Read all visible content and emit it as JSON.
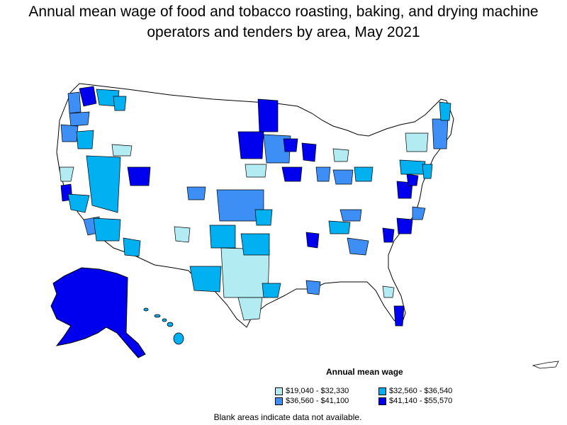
{
  "title": "Annual mean wage of food and tobacco roasting, baking, and drying machine operators and tenders by area, May 2021",
  "legend": {
    "title": "Annual mean wage",
    "items": [
      {
        "label": "$19,040 - $32,330",
        "color": "#b2ebf2"
      },
      {
        "label": "$32,560 - $36,540",
        "color": "#00b0f0"
      },
      {
        "label": "$36,560 - $41,100",
        "color": "#3d8ef5"
      },
      {
        "label": "$41,140 - $55,570",
        "color": "#0000ee"
      }
    ]
  },
  "footnote": "Blank areas indicate data not available.",
  "colors": {
    "border": "#000000",
    "blank": "#ffffff"
  }
}
